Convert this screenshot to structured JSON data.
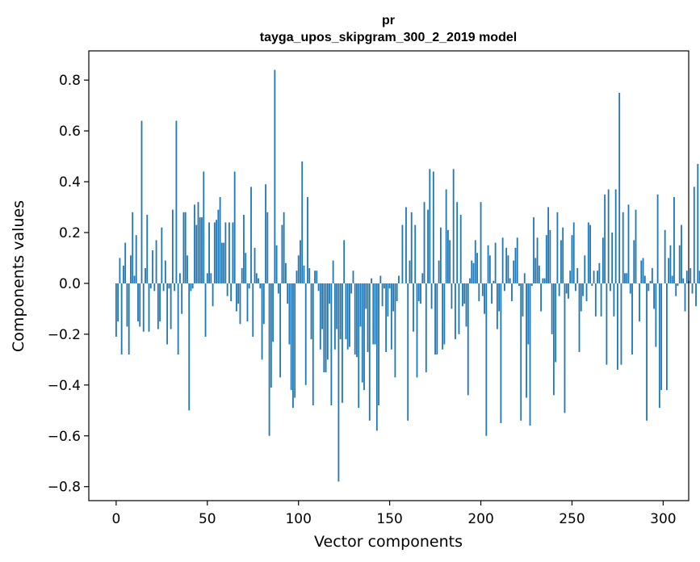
{
  "chart_data": {
    "type": "bar",
    "title_line1": "pr",
    "title_line2": "tayga_upos_skipgram_300_2_2019 model",
    "xlabel": "Vector components",
    "ylabel": "Components values",
    "xlim": [
      -15,
      314
    ],
    "ylim": [
      -0.855,
      0.915
    ],
    "xticks": [
      0,
      50,
      100,
      150,
      200,
      250,
      300
    ],
    "xtick_labels": [
      "0",
      "50",
      "100",
      "150",
      "200",
      "250",
      "300"
    ],
    "yticks": [
      -0.8,
      -0.6,
      -0.4,
      -0.2,
      0.0,
      0.2,
      0.4,
      0.6,
      0.8
    ],
    "ytick_labels": [
      "−0.8",
      "−0.6",
      "−0.4",
      "−0.2",
      "0.0",
      "0.2",
      "0.4",
      "0.6",
      "0.8"
    ],
    "bar_color": "#1f77b4",
    "grid": false,
    "values": [
      -0.21,
      -0.15,
      0.1,
      -0.28,
      0.07,
      0.16,
      -0.17,
      -0.28,
      0.11,
      0.28,
      0.03,
      0.19,
      -0.15,
      -0.17,
      0.64,
      -0.19,
      0.06,
      0.27,
      -0.19,
      -0.02,
      0.13,
      -0.03,
      0.17,
      -0.18,
      -0.15,
      0.22,
      -0.03,
      0.09,
      -0.24,
      -0.02,
      -0.18,
      0.29,
      -0.03,
      0.64,
      -0.28,
      0.04,
      -0.12,
      0.28,
      0.28,
      0.11,
      -0.5,
      -0.03,
      -0.02,
      0.31,
      0.23,
      0.32,
      0.26,
      0.26,
      0.44,
      -0.21,
      0.04,
      0.24,
      0.04,
      -0.09,
      0.24,
      0.25,
      0.29,
      0.34,
      0.16,
      0.16,
      0.24,
      -0.05,
      0.24,
      -0.07,
      0.24,
      0.44,
      -0.11,
      -0.08,
      -0.16,
      0.06,
      0.27,
      0.12,
      -0.15,
      -0.02,
      0.38,
      -0.21,
      0.14,
      0.04,
      0.02,
      -0.02,
      -0.3,
      -0.16,
      0.39,
      0.28,
      -0.6,
      -0.41,
      -0.23,
      0.84,
      0.15,
      -0.04,
      -0.37,
      0.23,
      0.28,
      0.08,
      -0.08,
      -0.24,
      -0.42,
      -0.49,
      -0.45,
      0.05,
      0.11,
      0.17,
      0.48,
      0.07,
      -0.4,
      0.34,
      0.06,
      -0.22,
      -0.48,
      0.05,
      0.05,
      -0.03,
      -0.26,
      -0.18,
      -0.35,
      -0.35,
      -0.3,
      -0.08,
      -0.48,
      0.09,
      -0.26,
      -0.18,
      -0.78,
      -0.22,
      -0.47,
      0.17,
      -0.22,
      -0.26,
      -0.25,
      -0.04,
      0.05,
      -0.28,
      -0.29,
      -0.49,
      -0.17,
      -0.39,
      -0.42,
      -0.1,
      -0.27,
      -0.54,
      0.02,
      -0.24,
      -0.24,
      -0.58,
      -0.48,
      0.03,
      -0.09,
      -0.02,
      -0.27,
      -0.13,
      -0.02,
      -0.26,
      -0.11,
      -0.37,
      -0.07,
      0.03,
      0.0,
      0.23,
      0.0,
      0.3,
      -0.54,
      0.09,
      0.28,
      -0.19,
      0.23,
      -0.37,
      -0.07,
      -0.08,
      0.04,
      0.32,
      -0.35,
      0.29,
      0.45,
      -0.1,
      0.44,
      -0.28,
      -0.28,
      0.09,
      0.22,
      -0.26,
      -0.24,
      0.37,
      0.21,
      0.17,
      -0.1,
      0.45,
      -0.22,
      0.32,
      -0.2,
      0.27,
      -0.09,
      -0.08,
      -0.17,
      -0.44,
      0.02,
      0.09,
      0.08,
      0.17,
      0.12,
      -0.07,
      0.32,
      -0.05,
      -0.12,
      -0.6,
      0.15,
      0.11,
      -0.08,
      0.01,
      0.16,
      -0.18,
      -0.11,
      -0.55,
      0.18,
      -0.03,
      0.14,
      0.11,
      0.02,
      -0.07,
      0.09,
      0.14,
      0.18,
      -0.01,
      -0.54,
      -0.13,
      0.04,
      -0.45,
      -0.24,
      -0.56,
      -0.01,
      0.26,
      0.1,
      0.18,
      0.07,
      -0.11,
      0.02,
      0.02,
      0.19,
      0.3,
      0.21,
      -0.2,
      -0.44,
      -0.31,
      0.28,
      -0.05,
      0.17,
      0.22,
      -0.51,
      -0.04,
      -0.06,
      0.05,
      0.19,
      0.24,
      -0.03,
      0.06,
      -0.27,
      -0.11,
      -0.05,
      0.11,
      -0.07,
      0.24,
      0.23,
      -0.01,
      0.05,
      -0.13,
      0.05,
      0.08,
      -0.13,
      0.18,
      0.35,
      -0.32,
      0.37,
      -0.03,
      0.2,
      -0.13,
      0.37,
      -0.34,
      0.75,
      -0.32,
      0.28,
      0.04,
      0.04,
      0.31,
      -0.04,
      -0.28,
      0.17,
      0.29,
      0.0,
      -0.15,
      0.09,
      0.1,
      0.03,
      -0.54,
      -0.03,
      0.01,
      0.06,
      -0.1,
      -0.25,
      0.35,
      -0.49,
      -0.42,
      0.0,
      0.21,
      -0.42,
      0.1,
      0.15,
      0.03,
      0.34,
      -0.05,
      -0.01,
      0.15,
      0.23,
      0.02,
      -0.11,
      0.05,
      0.01,
      0.06,
      -0.04,
      0.38,
      -0.09,
      0.47,
      0.05,
      0.12,
      -0.06,
      -0.01
    ]
  }
}
